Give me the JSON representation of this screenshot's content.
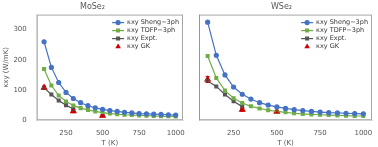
{
  "chart_data": [
    {
      "type": "line",
      "title": "MoSe₂",
      "xlabel": "T (K)",
      "ylabel": "κxy (W/mK)",
      "xlim": [
        50,
        1050
      ],
      "xticks": [
        250,
        500,
        750,
        1000
      ],
      "ylim": [
        0,
        350
      ],
      "yticks": [
        0,
        100,
        200,
        300
      ],
      "grid": false,
      "legend": "upper right",
      "series": [
        {
          "name": "κxy Sheng−3ph",
          "color": "#4472c4",
          "marker": "circle",
          "line_style": "solid",
          "x": [
            100,
            150,
            200,
            250,
            300,
            350,
            400,
            450,
            500,
            550,
            600,
            650,
            700,
            750,
            800,
            850,
            900,
            950,
            1000
          ],
          "values": [
            260,
            175,
            125,
            92,
            72,
            58,
            48,
            41,
            36,
            32,
            29,
            26,
            24,
            22,
            21,
            20,
            19,
            18,
            17
          ]
        },
        {
          "name": "κxy TDFP−3ph",
          "color": "#70ad47",
          "marker": "square",
          "line_style": "solid",
          "x": [
            100,
            150,
            200,
            250,
            300,
            350,
            400,
            450,
            500,
            550,
            600,
            650,
            700,
            750,
            800,
            850,
            900,
            950,
            1000
          ],
          "values": [
            170,
            115,
            82,
            62,
            49,
            40,
            34,
            29,
            25,
            22,
            20,
            18,
            17,
            16,
            15,
            14,
            13,
            13,
            12
          ]
        },
        {
          "name": "κxy Expt.",
          "color": "#555555",
          "marker": "square",
          "line_style": "solid",
          "x": [
            100,
            150,
            200,
            250,
            300
          ],
          "values": [
            107,
            85,
            65,
            50,
            37
          ]
        },
        {
          "name": "κxy GK",
          "color": "#cc0000",
          "marker": "triangle",
          "line_style": "none",
          "x": [
            100,
            300,
            500
          ],
          "values": [
            108,
            30,
            15
          ],
          "error_low": [
            5,
            5,
            3
          ],
          "error_high": [
            5,
            5,
            3
          ]
        }
      ]
    },
    {
      "type": "line",
      "title": "WSe₂",
      "xlabel": "T (K)",
      "xlim": [
        50,
        1050
      ],
      "xticks": [
        250,
        500,
        750,
        1000
      ],
      "ylim": [
        0,
        350
      ],
      "yticks": [
        0,
        100,
        200,
        300
      ],
      "grid": false,
      "legend": "upper right",
      "tick_labels": "x",
      "series": [
        {
          "name": "κxy Sheng−3ph",
          "color": "#4472c4",
          "marker": "circle",
          "line_style": "solid",
          "x": [
            100,
            150,
            200,
            250,
            300,
            350,
            400,
            450,
            500,
            550,
            600,
            650,
            700,
            750,
            800,
            850,
            900,
            950,
            1000
          ],
          "values": [
            325,
            215,
            150,
            110,
            86,
            70,
            58,
            50,
            44,
            39,
            35,
            32,
            29,
            27,
            25,
            24,
            23,
            22,
            21
          ]
        },
        {
          "name": "κxy TDFP−3ph",
          "color": "#70ad47",
          "marker": "square",
          "line_style": "solid",
          "x": [
            100,
            150,
            200,
            250,
            300,
            350,
            400,
            450,
            500,
            550,
            600,
            650,
            700,
            750,
            800,
            850,
            900,
            950,
            1000
          ],
          "values": [
            213,
            140,
            98,
            73,
            57,
            46,
            39,
            33,
            29,
            26,
            23,
            21,
            19,
            18,
            17,
            16,
            15,
            14,
            14
          ]
        },
        {
          "name": "κxy Expt.",
          "color": "#555555",
          "marker": "square",
          "line_style": "solid",
          "x": [
            100,
            150,
            200,
            250,
            300
          ],
          "values": [
            130,
            112,
            85,
            63,
            45
          ]
        },
        {
          "name": "κxy GK",
          "color": "#cc0000",
          "marker": "triangle",
          "line_style": "none",
          "x": [
            100,
            300,
            500
          ],
          "values": [
            135,
            35,
            28
          ],
          "error_low": [
            10,
            5,
            3
          ],
          "error_high": [
            10,
            5,
            3
          ]
        }
      ]
    }
  ]
}
